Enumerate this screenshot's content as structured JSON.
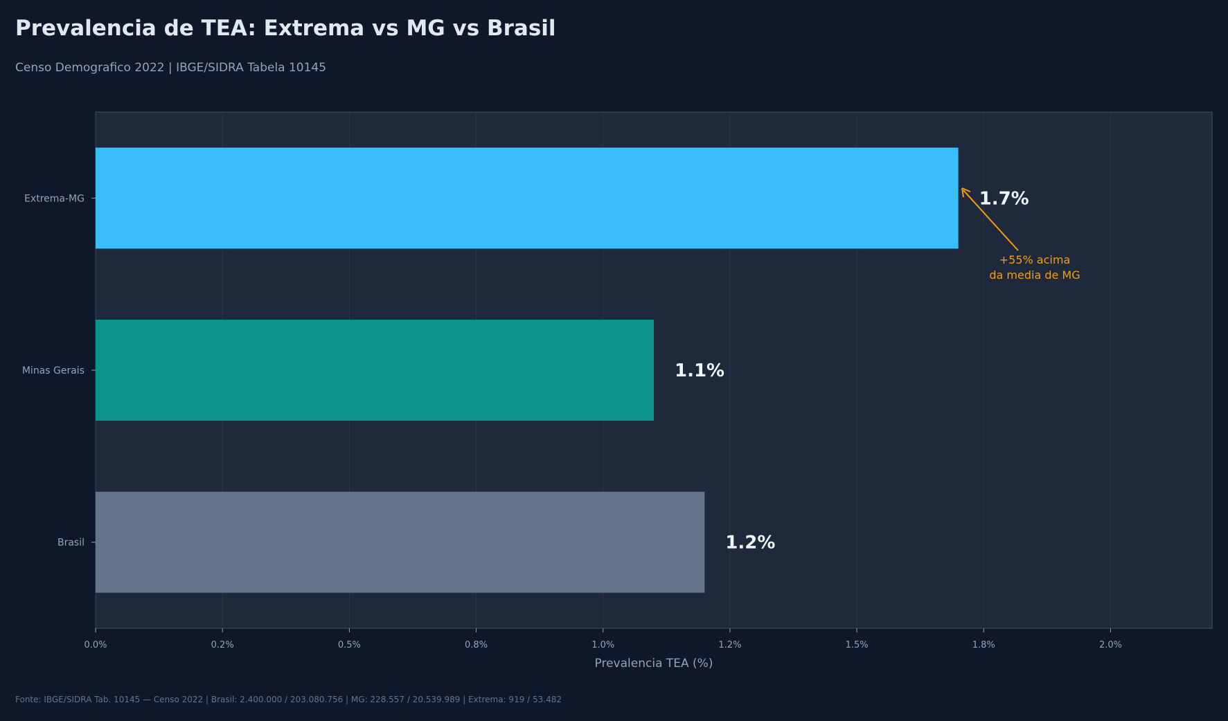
{
  "chart_data": {
    "type": "bar",
    "orientation": "horizontal",
    "title": "Prevalencia de TEA: Extrema vs MG vs Brasil",
    "subtitle": "Censo Demografico 2022 | IBGE/SIDRA Tabela 10145",
    "categories": [
      "Extrema-MG",
      "Minas Gerais",
      "Brasil"
    ],
    "values": [
      1.7,
      1.1,
      1.2
    ],
    "value_labels": [
      "1.7%",
      "1.1%",
      "1.2%"
    ],
    "colors": [
      "#38bdf8",
      "#0d9488",
      "#64748b"
    ],
    "xlabel": "Prevalencia TEA (%)",
    "ylabel": "",
    "xlim": [
      0,
      2.2
    ],
    "xticks": [
      0,
      0.25,
      0.5,
      0.75,
      1.0,
      1.25,
      1.5,
      1.75,
      2.0
    ],
    "xtick_labels": [
      "0.0%",
      "0.2%",
      "0.5%",
      "0.8%",
      "1.0%",
      "1.2%",
      "1.5%",
      "1.8%",
      "2.0%"
    ],
    "grid": "vertical",
    "annotation": {
      "lines": [
        "+55% acima",
        "da media de MG"
      ],
      "target_category": "Extrema-MG",
      "color": "#f59e0b"
    },
    "footer": "Fonte: IBGE/SIDRA Tab. 10145 — Censo 2022 | Brasil: 2.400.000 / 203.080.756 | MG: 228.557 / 20.539.989 | Extrema: 919 / 53.482"
  }
}
